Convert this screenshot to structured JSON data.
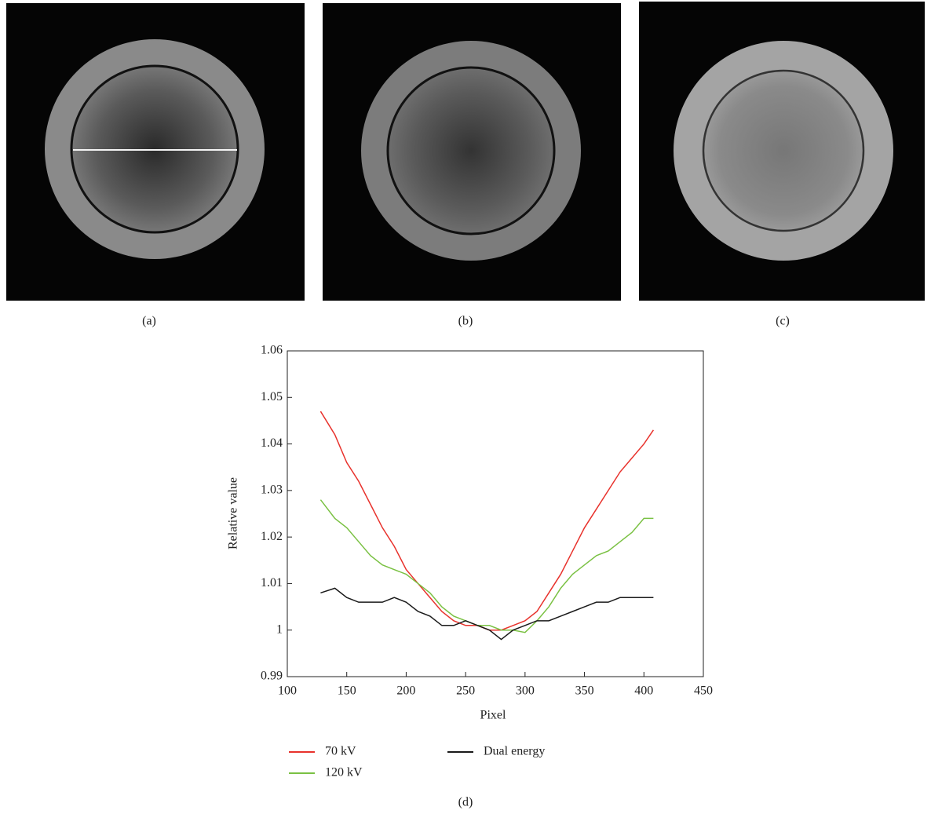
{
  "panels": [
    {
      "caption": "(a)"
    },
    {
      "caption": "(b)"
    },
    {
      "caption": "(c)"
    }
  ],
  "chart_data": {
    "type": "line",
    "caption": "(d)",
    "x_label": "Pixel",
    "y_label": "Relative value",
    "xlim": [
      100,
      450
    ],
    "xticks": [
      100,
      150,
      200,
      250,
      300,
      350,
      400,
      450
    ],
    "ylim": [
      0.99,
      1.06
    ],
    "yticks": [
      0.99,
      1,
      1.01,
      1.02,
      1.03,
      1.04,
      1.05,
      1.06
    ],
    "x": [
      128,
      140,
      150,
      160,
      170,
      180,
      190,
      200,
      210,
      220,
      230,
      240,
      250,
      260,
      270,
      280,
      290,
      300,
      310,
      320,
      330,
      340,
      350,
      360,
      370,
      380,
      390,
      400,
      408
    ],
    "series": [
      {
        "name": "70 kV",
        "color": "#e8322c",
        "values": [
          1.047,
          1.042,
          1.036,
          1.032,
          1.027,
          1.022,
          1.018,
          1.013,
          1.01,
          1.007,
          1.004,
          1.002,
          1.001,
          1.001,
          1.0,
          1.0,
          1.001,
          1.002,
          1.004,
          1.008,
          1.012,
          1.017,
          1.022,
          1.026,
          1.03,
          1.034,
          1.037,
          1.04,
          1.043
        ]
      },
      {
        "name": "120 kV",
        "color": "#7ac143",
        "values": [
          1.028,
          1.024,
          1.022,
          1.019,
          1.016,
          1.014,
          1.013,
          1.012,
          1.01,
          1.008,
          1.005,
          1.003,
          1.002,
          1.001,
          1.001,
          1.0,
          1.0,
          0.9995,
          1.002,
          1.005,
          1.009,
          1.012,
          1.014,
          1.016,
          1.017,
          1.019,
          1.021,
          1.024,
          1.024
        ]
      },
      {
        "name": "Dual energy",
        "color": "#1a1a1a",
        "values": [
          1.008,
          1.009,
          1.007,
          1.006,
          1.006,
          1.006,
          1.007,
          1.006,
          1.004,
          1.003,
          1.001,
          1.001,
          1.002,
          1.001,
          1.0,
          0.998,
          1.0,
          1.001,
          1.002,
          1.002,
          1.003,
          1.004,
          1.005,
          1.006,
          1.006,
          1.007,
          1.007,
          1.007,
          1.007
        ]
      }
    ]
  }
}
